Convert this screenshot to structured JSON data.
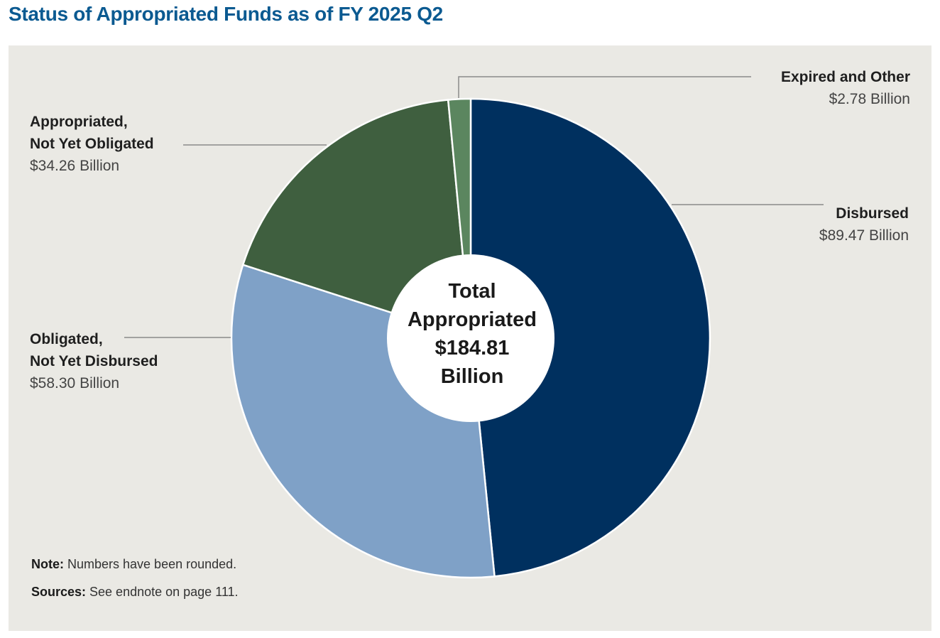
{
  "title": "Status of Appropriated Funds as of FY 2025 Q2",
  "chart_data": {
    "type": "pie",
    "title": "Status of Appropriated Funds as of FY 2025 Q2",
    "center_label": "Total\nAppropriated\n$184.81\nBillion",
    "total": 184.81,
    "slices": [
      {
        "name": "Disbursed",
        "value": 89.47,
        "value_label": "$89.47 Billion",
        "color": "#00305f"
      },
      {
        "name": "Obligated,\nNot Yet Disbursed",
        "value": 58.3,
        "value_label": "$58.30 Billion",
        "color": "#7fa1c7"
      },
      {
        "name": "Appropriated,\nNot Yet Obligated",
        "value": 34.26,
        "value_label": "$34.26 Billion",
        "color": "#3f5f3f"
      },
      {
        "name": "Expired and Other",
        "value": 2.78,
        "value_label": "$2.78 Billion",
        "color": "#5b865f"
      }
    ]
  },
  "notes": {
    "note_label": "Note:",
    "note_text": " Numbers have been rounded.",
    "sources_label": "Sources:",
    "sources_text": " See endnote on page 111."
  }
}
